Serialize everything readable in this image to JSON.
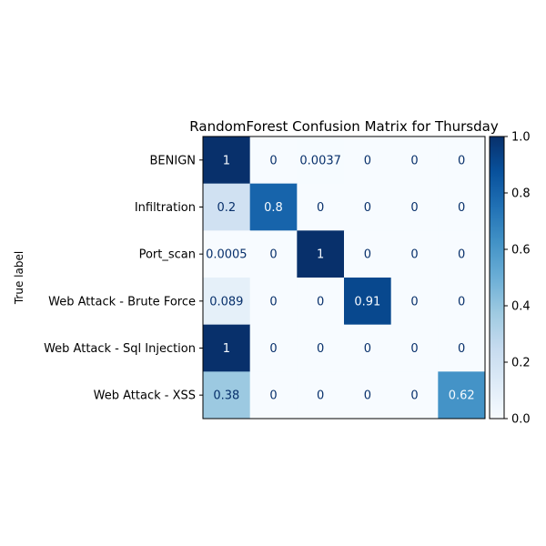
{
  "chart_data": {
    "type": "heatmap",
    "title": "RandomForest Confusion Matrix for Thursday",
    "ylabel": "True label",
    "xlabel": "",
    "row_labels": [
      "BENIGN",
      "Infiltration",
      "Port_scan",
      "Web Attack - Brute Force",
      "Web Attack - Sql Injection",
      "Web Attack - XSS"
    ],
    "column_count": 6,
    "values": [
      [
        1,
        0,
        0.0037,
        0,
        0,
        0
      ],
      [
        0.2,
        0.8,
        0,
        0,
        0,
        0
      ],
      [
        0.0005,
        0,
        1,
        0,
        0,
        0
      ],
      [
        0.089,
        0,
        0,
        0.91,
        0,
        0
      ],
      [
        1,
        0,
        0,
        0,
        0,
        0
      ],
      [
        0.38,
        0,
        0,
        0,
        0,
        0.62
      ]
    ],
    "value_labels": [
      [
        "1",
        "0",
        "0.0037",
        "0",
        "0",
        "0"
      ],
      [
        "0.2",
        "0.8",
        "0",
        "0",
        "0",
        "0"
      ],
      [
        "0.0005",
        "0",
        "1",
        "0",
        "0",
        "0"
      ],
      [
        "0.089",
        "0",
        "0",
        "0.91",
        "0",
        "0"
      ],
      [
        "1",
        "0",
        "0",
        "0",
        "0",
        "0"
      ],
      [
        "0.38",
        "0",
        "0",
        "0",
        "0",
        "0.62"
      ]
    ],
    "colormap": "Blues",
    "colorbar": {
      "range": [
        0,
        1
      ],
      "ticks": [
        0.0,
        0.2,
        0.4,
        0.6,
        0.8,
        1.0
      ],
      "tick_labels": [
        "0.0",
        "0.2",
        "0.4",
        "0.6",
        "0.8",
        "1.0"
      ]
    },
    "grid": false
  }
}
